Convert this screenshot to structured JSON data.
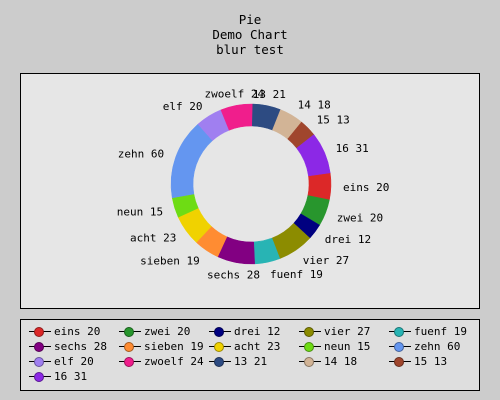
{
  "chart_data": {
    "type": "pie",
    "title": [
      "Pie",
      "Demo Chart",
      "blur test"
    ],
    "categories": [
      "eins",
      "zwei",
      "drei",
      "vier",
      "fuenf",
      "sechs",
      "sieben",
      "acht",
      "neun",
      "zehn",
      "elf",
      "zwoelf",
      "13",
      "14",
      "15",
      "16"
    ],
    "values": [
      20,
      20,
      12,
      27,
      19,
      28,
      19,
      23,
      15,
      60,
      20,
      24,
      21,
      18,
      13,
      31
    ],
    "colors": [
      "#dc2828",
      "#28962d",
      "#000080",
      "#8c8c00",
      "#28b4b4",
      "#820082",
      "#ff8c32",
      "#f0d200",
      "#6edc14",
      "#6496f0",
      "#a07ff0",
      "#f01e8c",
      "#2d4b82",
      "#d2b496",
      "#a0462d",
      "#8c28e6"
    ],
    "legend_position": "bottom",
    "style": "donut"
  }
}
